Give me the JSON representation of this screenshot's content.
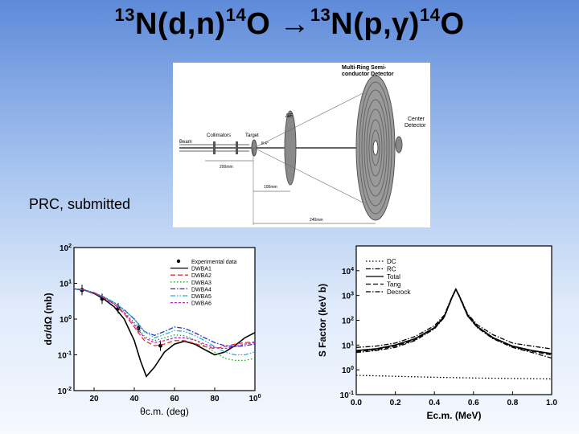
{
  "title": {
    "part1": "N(d,n)",
    "part1_pre": "13",
    "part1_mid": "14",
    "part2_pre": "O ",
    "arrow": "→",
    "part2_iso": "13",
    "part2": "N(p,γ)",
    "part2_iso2": "14",
    "part2_tail": "O"
  },
  "citation": "PRC, submitted",
  "detector_diagram": {
    "labels": {
      "multi_ring": "Multi-Ring Semi-",
      "multi_ring2": "conductor Detector",
      "center": "Center",
      "center2": "Detector",
      "beam": "Beam",
      "collimators": "Collimators",
      "target": "Target",
      "de": "ΔE",
      "angle": "8.4°",
      "d1": "200mm",
      "d2": "100mm",
      "d3": "240mm"
    }
  },
  "chart_data": [
    {
      "type": "line",
      "xlabel": "θc.m. (deg)",
      "ylabel": "dσ/dΩ (mb)",
      "xlim": [
        10,
        100
      ],
      "ylim": [
        0.01,
        100
      ],
      "yscale": "log",
      "x_ticks": [
        "20",
        "40",
        "60",
        "80",
        "100"
      ],
      "y_ticks": [
        "10-2",
        "10-1",
        "100",
        "101",
        "102"
      ],
      "legend_position": "top-right",
      "series": [
        {
          "name": "Experimental data",
          "style": "points",
          "color": "#000000",
          "x": [
            14,
            24,
            32,
            42,
            53
          ],
          "y": [
            6.5,
            3.7,
            2.0,
            0.55,
            0.18
          ]
        },
        {
          "name": "DWBA1",
          "style": "solid",
          "color": "#000000",
          "x": [
            10,
            15,
            20,
            25,
            30,
            35,
            40,
            43,
            46,
            50,
            55,
            60,
            65,
            70,
            75,
            80,
            85,
            90,
            95,
            100
          ],
          "y": [
            7,
            6.5,
            5.2,
            3.6,
            2.2,
            1.0,
            0.25,
            0.07,
            0.025,
            0.045,
            0.12,
            0.2,
            0.24,
            0.2,
            0.14,
            0.1,
            0.12,
            0.18,
            0.3,
            0.42
          ]
        },
        {
          "name": "DWBA2",
          "style": "dash",
          "color": "#e83030",
          "x": [
            10,
            15,
            20,
            25,
            30,
            35,
            40,
            45,
            50,
            55,
            60,
            65,
            70,
            75,
            80,
            85,
            90,
            95,
            100
          ],
          "y": [
            7,
            6.5,
            5.4,
            3.9,
            2.6,
            1.4,
            0.6,
            0.25,
            0.18,
            0.2,
            0.25,
            0.25,
            0.21,
            0.17,
            0.15,
            0.17,
            0.2,
            0.22,
            0.23
          ]
        },
        {
          "name": "DWBA3",
          "style": "dot",
          "color": "#2aa02a",
          "x": [
            10,
            15,
            20,
            25,
            30,
            35,
            40,
            45,
            50,
            55,
            60,
            65,
            70,
            75,
            80,
            85,
            90,
            95,
            100
          ],
          "y": [
            7,
            6.5,
            5.5,
            4.0,
            2.7,
            1.6,
            0.8,
            0.33,
            0.25,
            0.3,
            0.36,
            0.34,
            0.26,
            0.18,
            0.12,
            0.08,
            0.07,
            0.07,
            0.08
          ]
        },
        {
          "name": "DWBA4",
          "style": "dashdot",
          "color": "#2030d0",
          "x": [
            10,
            15,
            20,
            25,
            30,
            35,
            40,
            45,
            50,
            55,
            60,
            65,
            70,
            75,
            80,
            85,
            90,
            95,
            100
          ],
          "y": [
            7,
            6.5,
            5.5,
            4.1,
            2.9,
            1.8,
            1.0,
            0.45,
            0.35,
            0.45,
            0.6,
            0.55,
            0.42,
            0.3,
            0.22,
            0.18,
            0.17,
            0.18,
            0.2
          ]
        },
        {
          "name": "DWBA5",
          "style": "dashdotdot",
          "color": "#20b0c8",
          "x": [
            10,
            15,
            20,
            25,
            30,
            35,
            40,
            45,
            50,
            55,
            60,
            65,
            70,
            75,
            80,
            85,
            90,
            95,
            100
          ],
          "y": [
            7,
            6.5,
            5.5,
            4.1,
            2.9,
            1.8,
            1.0,
            0.45,
            0.3,
            0.37,
            0.48,
            0.45,
            0.35,
            0.25,
            0.17,
            0.12,
            0.1,
            0.1,
            0.12
          ]
        },
        {
          "name": "DWBA6",
          "style": "shortdash",
          "color": "#c020c0",
          "x": [
            10,
            15,
            20,
            25,
            30,
            35,
            40,
            45,
            50,
            55,
            60,
            65,
            70,
            75,
            80,
            85,
            90,
            95,
            100
          ],
          "y": [
            7,
            6.5,
            5.4,
            3.9,
            2.6,
            1.5,
            0.7,
            0.3,
            0.22,
            0.25,
            0.3,
            0.3,
            0.26,
            0.2,
            0.16,
            0.15,
            0.17,
            0.2,
            0.22
          ]
        }
      ]
    },
    {
      "type": "line",
      "xlabel": "Ec.m. (MeV)",
      "ylabel": "S Factor (keV b)",
      "xlim": [
        0.0,
        1.0
      ],
      "ylim": [
        0.1,
        100000
      ],
      "yscale": "log",
      "x_ticks": [
        "0.0",
        "0.2",
        "0.4",
        "0.6",
        "0.8",
        "1.0"
      ],
      "y_ticks": [
        "10-1",
        "100",
        "101",
        "102",
        "103",
        "104"
      ],
      "legend_position": "top-left",
      "series": [
        {
          "name": "DC",
          "style": "dot",
          "color": "#000000",
          "x": [
            0.0,
            0.2,
            0.4,
            0.6,
            0.8,
            1.0
          ],
          "y": [
            0.6,
            0.55,
            0.5,
            0.47,
            0.45,
            0.43
          ]
        },
        {
          "name": "RC",
          "style": "dashdot",
          "color": "#000000",
          "x": [
            0.0,
            0.1,
            0.2,
            0.3,
            0.4,
            0.45,
            0.49,
            0.51,
            0.53,
            0.57,
            0.62,
            0.7,
            0.8,
            0.9,
            1.0
          ],
          "y": [
            5,
            6,
            8,
            15,
            45,
            130,
            800,
            1800,
            800,
            150,
            50,
            18,
            8,
            5,
            3
          ]
        },
        {
          "name": "Total",
          "style": "solid",
          "color": "#000000",
          "x": [
            0.0,
            0.1,
            0.2,
            0.3,
            0.4,
            0.45,
            0.49,
            0.51,
            0.53,
            0.57,
            0.62,
            0.7,
            0.8,
            0.9,
            1.0
          ],
          "y": [
            6,
            7,
            10,
            18,
            50,
            140,
            850,
            1800,
            850,
            160,
            55,
            20,
            9,
            6,
            4.5
          ]
        },
        {
          "name": "Tang",
          "style": "dash",
          "color": "#000000",
          "x": [
            0.0,
            0.1,
            0.2,
            0.3,
            0.4,
            0.45,
            0.49,
            0.51,
            0.53,
            0.57,
            0.62,
            0.7,
            0.8,
            0.9,
            1.0
          ],
          "y": [
            5.5,
            6.5,
            9,
            16,
            48,
            135,
            820,
            1750,
            820,
            150,
            52,
            19,
            8.5,
            5.5,
            4
          ]
        },
        {
          "name": "Decrock",
          "style": "dashdot",
          "color": "#000000",
          "x": [
            0.0,
            0.1,
            0.2,
            0.3,
            0.4,
            0.45,
            0.49,
            0.51,
            0.53,
            0.57,
            0.62,
            0.7,
            0.8,
            0.9,
            1.0
          ],
          "y": [
            8,
            9,
            12,
            22,
            60,
            160,
            900,
            1850,
            900,
            180,
            65,
            26,
            12,
            9,
            7
          ]
        }
      ]
    }
  ]
}
